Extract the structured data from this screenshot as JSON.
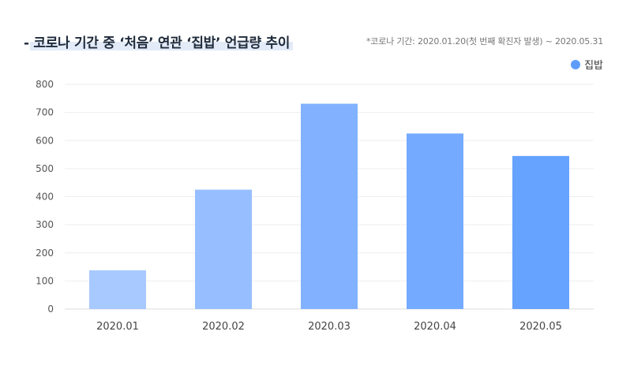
{
  "title": "- 코로나 기간 중 ‘처음’ 연관 ‘집밥’ 언급량 추이",
  "note": "*코로나 기간: 2020.01.20(첫 번째 확진자 발생) ~ 2020.05.31",
  "colors": {
    "bars": [
      "#a8c9ff",
      "#97beff",
      "#82b2ff",
      "#74aaff",
      "#66a2ff"
    ],
    "legend": "#5e9dfa",
    "grid": "#eeeeee",
    "axis": "#dddddd",
    "tick_text": "#555555",
    "title_highlight": "#e3ebf8"
  },
  "chart_data": {
    "type": "bar",
    "title": "",
    "xlabel": "",
    "ylabel": "",
    "categories": [
      "2020.01",
      "2020.02",
      "2020.03",
      "2020.04",
      "2020.05"
    ],
    "series": [
      {
        "name": "집밥",
        "values": [
          138,
          425,
          731,
          625,
          545
        ]
      }
    ],
    "ylim": [
      0,
      800
    ],
    "yticks": [
      0,
      100,
      200,
      300,
      400,
      500,
      600,
      700,
      800
    ],
    "grid": true,
    "legend_position": "top-right"
  }
}
